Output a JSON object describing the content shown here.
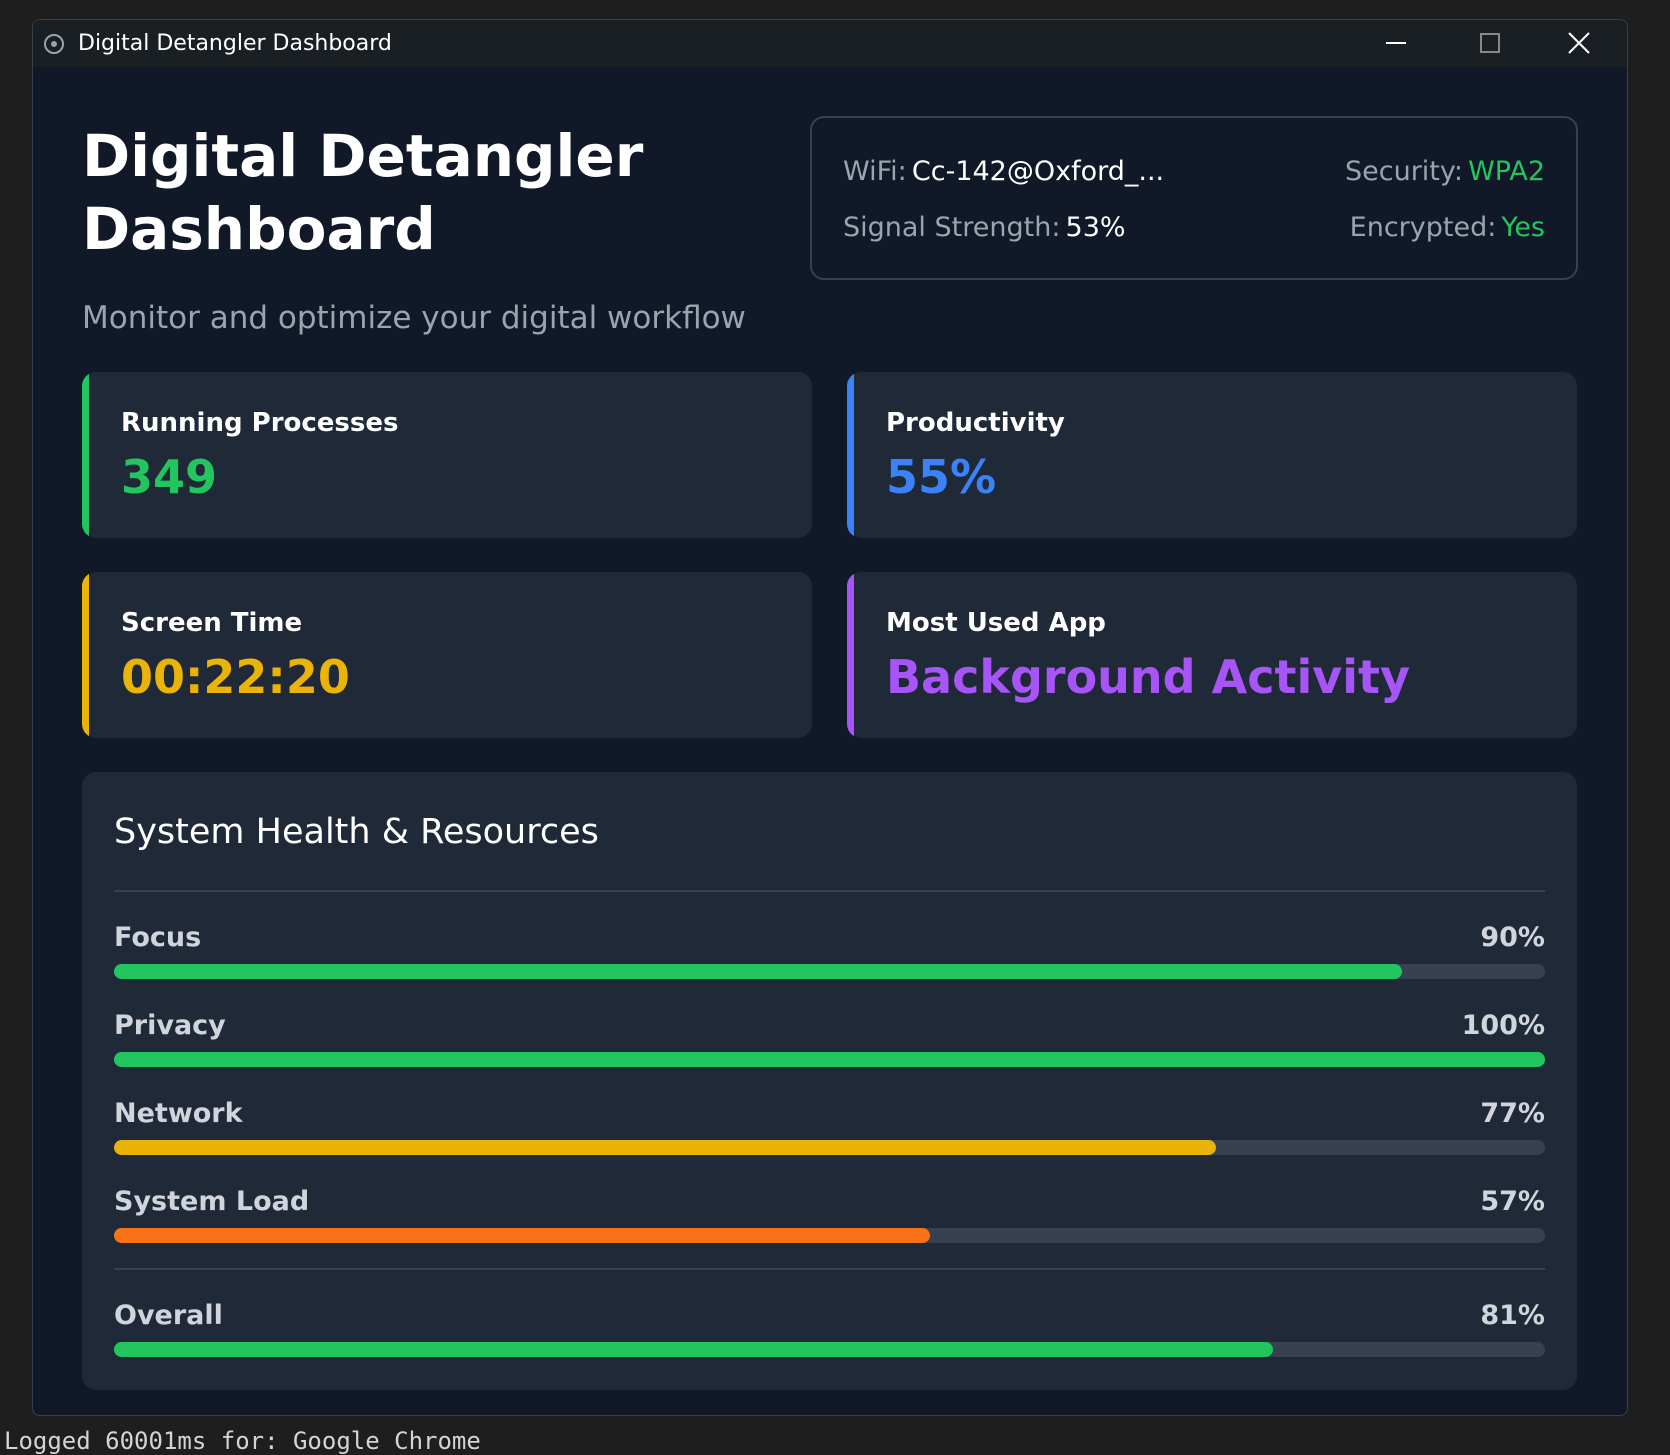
{
  "window": {
    "title": "Digital Detangler Dashboard"
  },
  "header": {
    "title_line1": "Digital Detangler",
    "title_line2": "Dashboard",
    "subtitle": "Monitor and optimize your digital workflow"
  },
  "network": {
    "wifi_label": "WiFi:",
    "wifi": "Cc-142@Oxford_...",
    "security_label": "Security:",
    "security": "WPA2",
    "signal_label": "Signal Strength:",
    "signal": "53%",
    "encrypted_label": "Encrypted:",
    "encrypted": "Yes"
  },
  "cards": [
    {
      "label": "Running Processes",
      "value": "349",
      "color": "#22c55e"
    },
    {
      "label": "Productivity",
      "value": "55%",
      "color": "#3b82f6"
    },
    {
      "label": "Screen Time",
      "value": "00:22:20",
      "color": "#eab308"
    },
    {
      "label": "Most Used App",
      "value": "Background Activity",
      "color": "#a855f7"
    }
  ],
  "health": {
    "title": "System Health & Resources",
    "metrics": [
      {
        "name": "Focus",
        "value": 90,
        "label": "90%",
        "color": "#22c55e"
      },
      {
        "name": "Privacy",
        "value": 100,
        "label": "100%",
        "color": "#22c55e"
      },
      {
        "name": "Network",
        "value": 77,
        "label": "77%",
        "color": "#eab308"
      },
      {
        "name": "System Load",
        "value": 57,
        "label": "57%",
        "color": "#f97316"
      }
    ],
    "overall": {
      "name": "Overall",
      "value": 81,
      "label": "81%",
      "color": "#22c55e"
    }
  },
  "background": {
    "log_line": "Logged 60001ms for: Google Chrome"
  }
}
